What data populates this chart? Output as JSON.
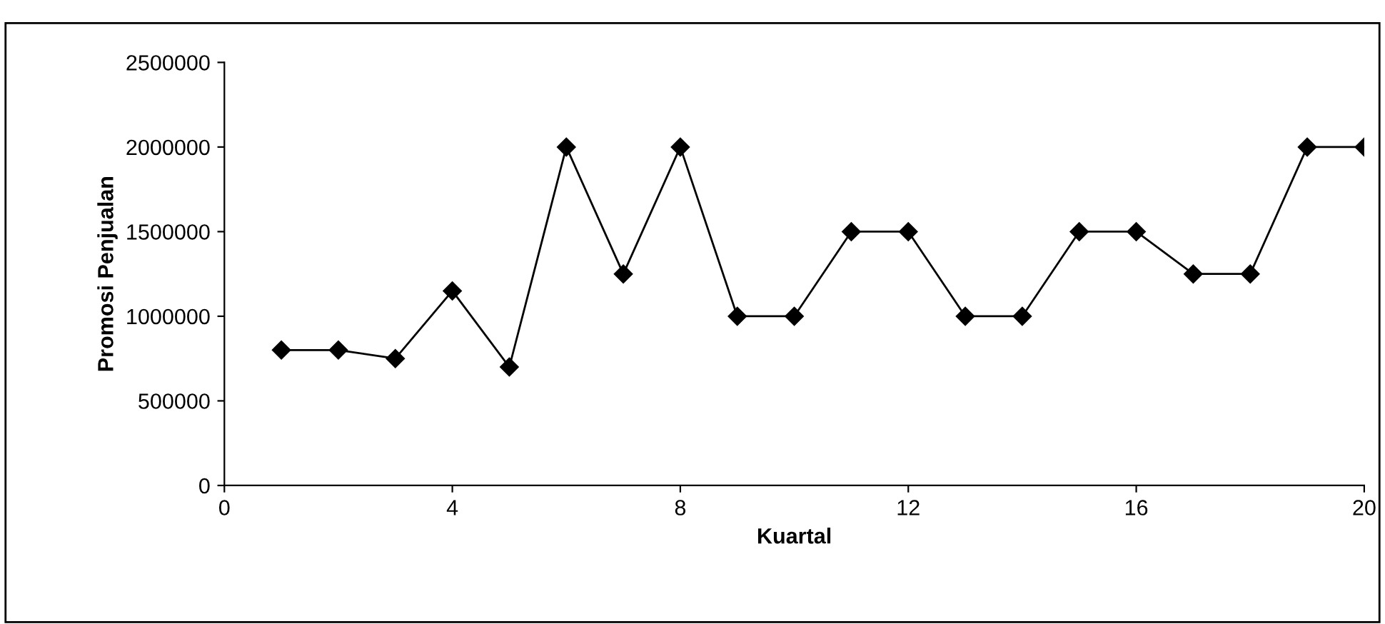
{
  "chart_data": {
    "type": "line",
    "xlabel": "Kuartal",
    "ylabel": "Promosi Penjualan",
    "x": [
      1,
      2,
      3,
      4,
      5,
      6,
      7,
      8,
      9,
      10,
      11,
      12,
      13,
      14,
      15,
      16,
      17,
      18,
      19,
      20
    ],
    "series": [
      {
        "color": "#000000",
        "values": [
          800000,
          800000,
          750000,
          1150000,
          700000,
          2000000,
          1250000,
          2000000,
          1000000,
          1000000,
          1500000,
          1500000,
          1000000,
          1000000,
          1500000,
          1500000,
          1250000,
          1250000,
          2000000,
          2000000
        ]
      }
    ],
    "xlim": [
      0,
      20
    ],
    "xticks": [
      0,
      4,
      8,
      12,
      16,
      20
    ],
    "ylim": [
      0,
      2500000
    ],
    "yticks": [
      0,
      500000,
      1000000,
      1500000,
      2000000,
      2500000
    ],
    "marker": "diamond",
    "line_style": "solid",
    "grid": false,
    "legend": false
  }
}
